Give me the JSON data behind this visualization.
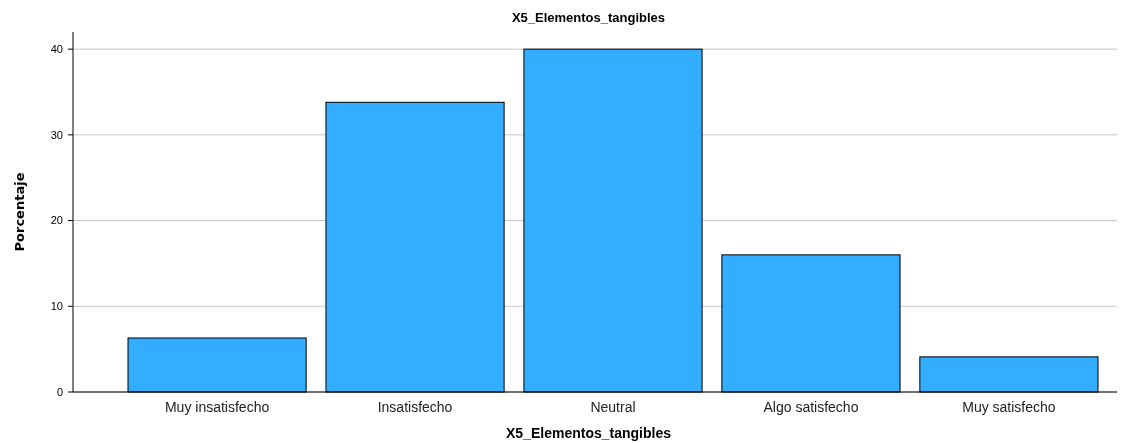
{
  "chart_data": {
    "type": "bar",
    "title": "X5_Elementos_tangibles",
    "xlabel": "X5_Elementos_tangibles",
    "ylabel": "Porcentaje",
    "categories": [
      "Muy insatisfecho",
      "Insatisfecho",
      "Neutral",
      "Algo satisfecho",
      "Muy satisfecho"
    ],
    "values": [
      6.3,
      33.8,
      40,
      16,
      4.1
    ],
    "color": "#33adff",
    "ylim": [
      0,
      42
    ],
    "yticks": [
      0,
      10,
      20,
      30,
      40
    ],
    "grid": "y"
  }
}
